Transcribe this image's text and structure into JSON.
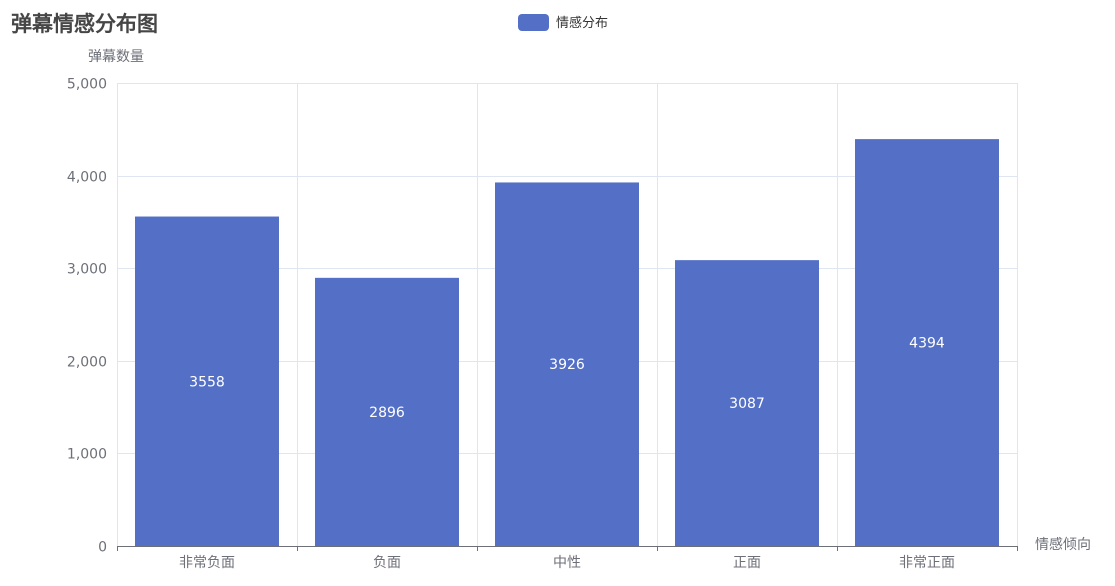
{
  "chart_data": {
    "type": "bar",
    "title": "弹幕情感分布图",
    "xlabel": "情感倾向",
    "ylabel": "弹幕数量",
    "categories": [
      "非常负面",
      "负面",
      "中性",
      "正面",
      "非常正面"
    ],
    "series": [
      {
        "name": "情感分布",
        "values": [
          3558,
          2896,
          3926,
          3087,
          4394
        ],
        "color": "#5470c6"
      }
    ],
    "ylim": [
      0,
      5000
    ],
    "yticks": [
      0,
      1000,
      2000,
      3000,
      4000,
      5000
    ],
    "ytick_labels": [
      "0",
      "1,000",
      "2,000",
      "3,000",
      "4,000",
      "5,000"
    ],
    "data_labels": [
      "3558",
      "2896",
      "3926",
      "3087",
      "4394"
    ],
    "legend_position": "top-center",
    "grid": true,
    "colors": {
      "grid": "#e0e6f1",
      "axis": "#6e7079",
      "title": "#464646"
    }
  }
}
